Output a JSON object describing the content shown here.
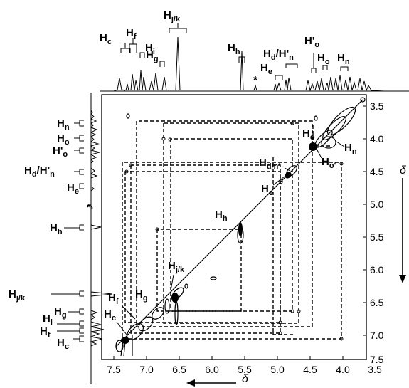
{
  "top_labels": [
    {
      "id": "Hc",
      "main": "H",
      "sub": "c",
      "prime": ""
    },
    {
      "id": "Hf",
      "main": "H",
      "sub": "f",
      "prime": ""
    },
    {
      "id": "Hi",
      "main": "H",
      "sub": "i",
      "prime": ""
    },
    {
      "id": "Hg",
      "main": "H",
      "sub": "g",
      "prime": ""
    },
    {
      "id": "Hjk",
      "main": "H",
      "sub": "j/k",
      "prime": ""
    },
    {
      "id": "Hh",
      "main": "H",
      "sub": "h",
      "prime": ""
    },
    {
      "id": "He",
      "main": "H",
      "sub": "e",
      "prime": ""
    },
    {
      "id": "HdHn",
      "main": "H",
      "sub": "d",
      "prime": "/H'",
      "sub2": "n"
    },
    {
      "id": "Ho2",
      "main": "H'",
      "sub": "o",
      "prime": ""
    },
    {
      "id": "Ho",
      "main": "H",
      "sub": "o",
      "prime": ""
    },
    {
      "id": "Hn",
      "main": "H",
      "sub": "n",
      "prime": ""
    }
  ],
  "left_labels": [
    {
      "id": "Hn",
      "main": "H",
      "sub": "n"
    },
    {
      "id": "Ho",
      "main": "H",
      "sub": "o"
    },
    {
      "id": "Ho2",
      "main": "H'",
      "sub": "o"
    },
    {
      "id": "HdHn",
      "main": "H",
      "sub": "d",
      "extra": "/H'",
      "sub2": "n"
    },
    {
      "id": "He",
      "main": "H",
      "sub": "e"
    },
    {
      "id": "Hh",
      "main": "H",
      "sub": "h"
    },
    {
      "id": "Hjk",
      "main": "H",
      "sub": "j/k"
    },
    {
      "id": "Hg",
      "main": "H",
      "sub": "g"
    },
    {
      "id": "Hi",
      "main": "H",
      "sub": "i"
    },
    {
      "id": "Hf",
      "main": "H",
      "sub": "f"
    },
    {
      "id": "Hc",
      "main": "H",
      "sub": "c"
    }
  ],
  "inner_labels": [
    {
      "id": "Ho",
      "main": "H",
      "sub": "o"
    },
    {
      "id": "Hn",
      "main": "H",
      "sub": "n"
    },
    {
      "id": "Ho2",
      "main": "H",
      "sub": "o'"
    },
    {
      "id": "Hdn",
      "main": "H",
      "sub": "d/n'"
    },
    {
      "id": "He",
      "main": "H",
      "sub": "e"
    },
    {
      "id": "Hh",
      "main": "H",
      "sub": "h"
    },
    {
      "id": "Hjk",
      "main": "H",
      "sub": "j/k"
    },
    {
      "id": "Hg",
      "main": "H",
      "sub": "g"
    },
    {
      "id": "Hf",
      "main": "H",
      "sub": "f"
    },
    {
      "id": "Hc",
      "main": "H",
      "sub": "c"
    }
  ],
  "asterisk": "*",
  "x_ticks": [
    "7.5",
    "7.0",
    "6.5",
    "6.0",
    "5.5",
    "5.0",
    "4.5",
    "4.0",
    "3.5"
  ],
  "y_ticks": [
    "3.5",
    "4.0",
    "4.5",
    "5.0",
    "5.5",
    "6.0",
    "6.5",
    "7.0",
    "7.5"
  ],
  "axis_symbol": "δ",
  "axis_range_ppm": [
    7.9,
    3.3
  ]
}
